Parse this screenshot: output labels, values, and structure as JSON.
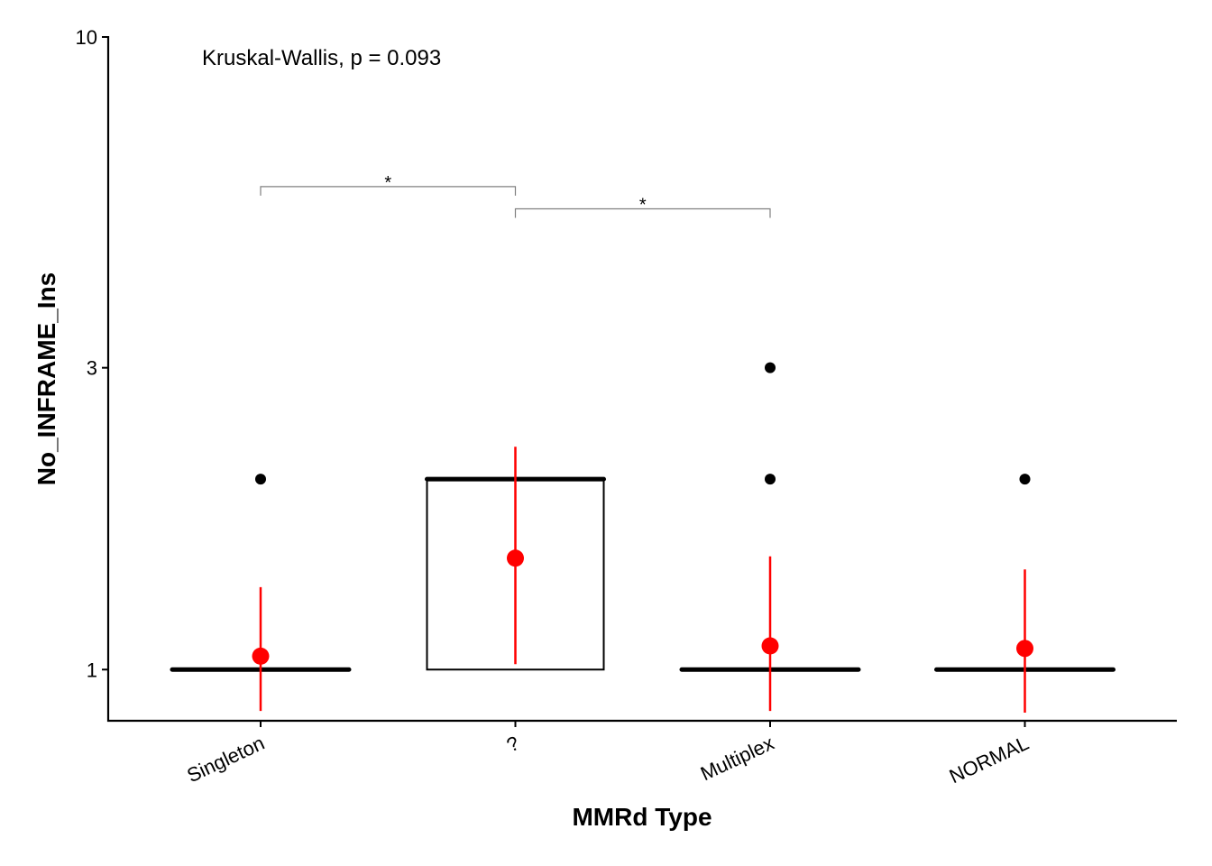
{
  "chart_data": {
    "type": "box",
    "xlabel": "MMRd Type",
    "ylabel": "No_INFRAME_Ins",
    "y_scale": "log",
    "y_ticks": [
      1,
      3,
      10
    ],
    "ylim": [
      0.83,
      10
    ],
    "categories": [
      "Singleton",
      "?",
      "Multiplex",
      "NORMAL"
    ],
    "boxes": [
      {
        "category": "Singleton",
        "q1": 1,
        "median": 1,
        "q3": 1
      },
      {
        "category": "?",
        "q1": 1,
        "median": 2,
        "q3": 2
      },
      {
        "category": "Multiplex",
        "q1": 1,
        "median": 1,
        "q3": 1
      },
      {
        "category": "NORMAL",
        "q1": 1,
        "median": 1,
        "q3": 1
      }
    ],
    "outliers": [
      {
        "category": "Singleton",
        "y": 2
      },
      {
        "category": "Multiplex",
        "y": 3
      },
      {
        "category": "Multiplex",
        "y": 2
      },
      {
        "category": "NORMAL",
        "y": 2
      }
    ],
    "mean_points": [
      {
        "category": "Singleton",
        "mean": 1.05,
        "low": 0.86,
        "high": 1.35
      },
      {
        "category": "?",
        "mean": 1.5,
        "low": 1.02,
        "high": 2.25
      },
      {
        "category": "Multiplex",
        "mean": 1.09,
        "low": 0.86,
        "high": 1.51
      },
      {
        "category": "NORMAL",
        "mean": 1.08,
        "low": 0.855,
        "high": 1.44
      }
    ],
    "mean_color": "#ff0000",
    "annotation": "Kruskal-Wallis, p = 0.093",
    "comparisons": [
      {
        "from": "Singleton",
        "to": "?",
        "label": "*",
        "y": 5.8
      },
      {
        "from": "?",
        "to": "Multiplex",
        "label": "*",
        "y": 5.35
      }
    ]
  }
}
